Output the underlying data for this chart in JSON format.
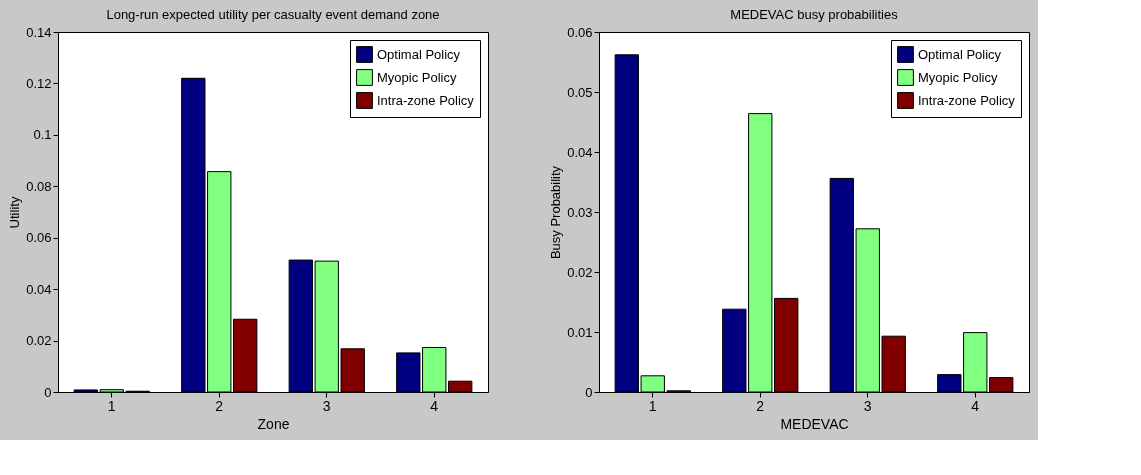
{
  "chart_data": [
    {
      "type": "bar",
      "title": "Long-run expected utility per casualty event demand zone",
      "xlabel": "Zone",
      "ylabel": "Utility",
      "categories": [
        "1",
        "2",
        "3",
        "4"
      ],
      "ylim": [
        0,
        0.14
      ],
      "yticks": [
        0,
        0.02,
        0.04,
        0.06,
        0.08,
        0.1,
        0.12,
        0.14
      ],
      "grid": false,
      "legend": "top right",
      "series": [
        {
          "name": "Optimal Policy",
          "color": "#000080",
          "values": [
            0.0008,
            0.122,
            0.0513,
            0.0152
          ]
        },
        {
          "name": "Myopic Policy",
          "color": "#80ff80",
          "values": [
            0.0009,
            0.0857,
            0.0509,
            0.0173
          ]
        },
        {
          "name": "Intra-zone Policy",
          "color": "#800000",
          "values": [
            0.0003,
            0.0283,
            0.0168,
            0.0042
          ]
        }
      ]
    },
    {
      "type": "bar",
      "title": "MEDEVAC busy probabilities",
      "xlabel": "MEDEVAC",
      "ylabel": "Busy Probability",
      "categories": [
        "1",
        "2",
        "3",
        "4"
      ],
      "ylim": [
        0,
        0.06
      ],
      "yticks": [
        0,
        0.01,
        0.02,
        0.03,
        0.04,
        0.05,
        0.06
      ],
      "grid": false,
      "legend": "top right",
      "series": [
        {
          "name": "Optimal Policy",
          "color": "#000080",
          "values": [
            0.0562,
            0.0138,
            0.0356,
            0.0029
          ]
        },
        {
          "name": "Myopic Policy",
          "color": "#80ff80",
          "values": [
            0.0027,
            0.0464,
            0.0272,
            0.0099
          ]
        },
        {
          "name": "Intra-zone Policy",
          "color": "#800000",
          "values": [
            0.0002,
            0.0156,
            0.0093,
            0.0024
          ]
        }
      ]
    }
  ]
}
